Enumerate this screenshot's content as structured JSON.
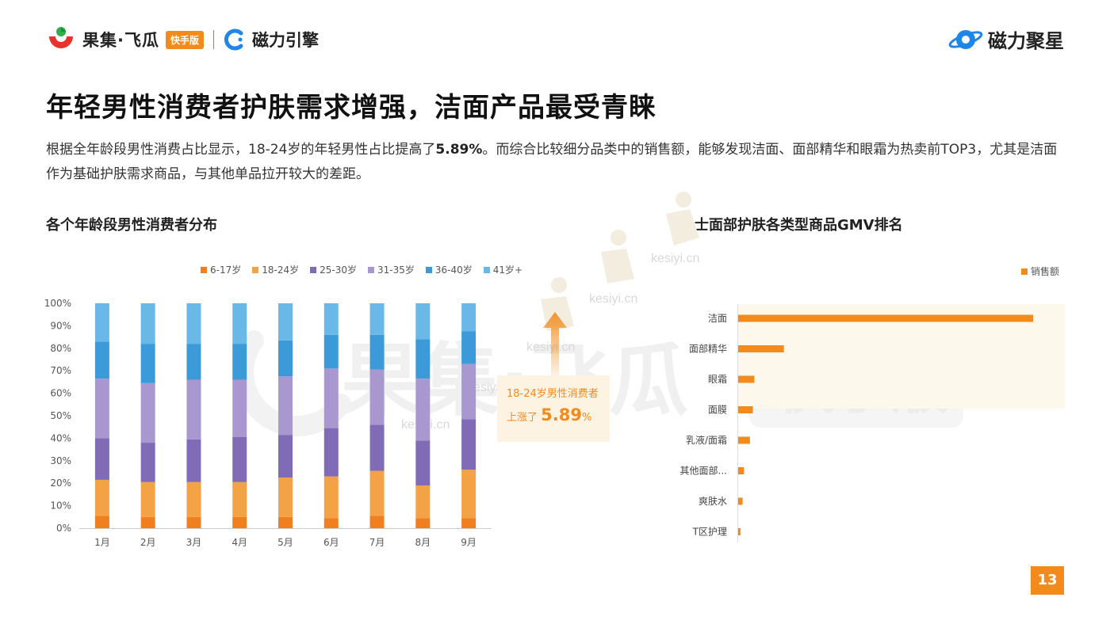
{
  "header": {
    "brand_left": "果集·飞瓜",
    "brand_badge": "快手版",
    "brand_mid": "磁力引擎",
    "brand_right": "磁力聚星"
  },
  "title": "年轻男性消费者护肤需求增强，洁面产品最受青睐",
  "description": {
    "part1": "根据全年龄段男性消费占比显示，18-24岁的年轻男性占比提高了",
    "highlight": "5.89%",
    "part2": "。而综合比较细分品类中的销售额，能够发现洁面、面部精华和眼霜为热卖前TOP3，尤其是洁面作为基础护肤需求商品，与其他单品拉开较大的差距。"
  },
  "left_section_title": "各个年龄段男性消费者分布",
  "right_section_title": "男士面部护肤各类型商品GMV排名",
  "callout": {
    "line1": "18-24岁男性消费者",
    "line2_prefix": "上涨了",
    "line2_value": "5.89",
    "line2_unit": "%"
  },
  "watermark": {
    "text": "kesiyi.cn",
    "big_brand": "果集·飞瓜",
    "big_badge": "快手版"
  },
  "page_number": "13",
  "colors": {
    "accent": "#f28a1c",
    "s1": "#f07f1f",
    "s2": "#f4a246",
    "s3": "#7f6bb6",
    "s4": "#a898cf",
    "s5": "#3d9ad9",
    "s6": "#6ab8e8"
  },
  "chart_data": [
    {
      "type": "bar",
      "stacked": true,
      "categories": [
        "1月",
        "2月",
        "3月",
        "4月",
        "5月",
        "6月",
        "7月",
        "8月",
        "9月"
      ],
      "series": [
        {
          "name": "6-17岁",
          "values": [
            5.5,
            5,
            5,
            5,
            5,
            4.5,
            5.5,
            4.5,
            4.5
          ]
        },
        {
          "name": "18-24岁",
          "values": [
            16,
            15.5,
            15.5,
            15.5,
            17.5,
            18.5,
            20,
            14.5,
            21.5
          ]
        },
        {
          "name": "25-30岁",
          "values": [
            18.5,
            17.5,
            19,
            20,
            19,
            21.5,
            20.5,
            20,
            22.5
          ]
        },
        {
          "name": "31-35岁",
          "values": [
            26.5,
            26.5,
            26.5,
            25.5,
            26,
            26.5,
            24.5,
            27.5,
            24.5
          ]
        },
        {
          "name": "36-40岁",
          "values": [
            16.5,
            17.5,
            16,
            16,
            16,
            15,
            15.5,
            17.5,
            14.5
          ]
        },
        {
          "name": "41岁+",
          "values": [
            17,
            18,
            18,
            18,
            16.5,
            14,
            14,
            16,
            12.5
          ]
        }
      ],
      "yticks": [
        "0%",
        "10%",
        "20%",
        "30%",
        "40%",
        "50%",
        "60%",
        "70%",
        "80%",
        "90%",
        "100%"
      ],
      "ylim": [
        0,
        100
      ],
      "legend_position": "top"
    },
    {
      "type": "bar",
      "orientation": "horizontal",
      "categories": [
        "洁面",
        "面部精华",
        "眼霜",
        "面膜",
        "乳液/面霜",
        "其他面部...",
        "爽肤水",
        "T区护理"
      ],
      "series": [
        {
          "name": "销售额",
          "values": [
            100,
            15.5,
            5.5,
            5,
            4,
            2,
            1.5,
            0.8
          ]
        }
      ],
      "legend_position": "top-right"
    }
  ]
}
